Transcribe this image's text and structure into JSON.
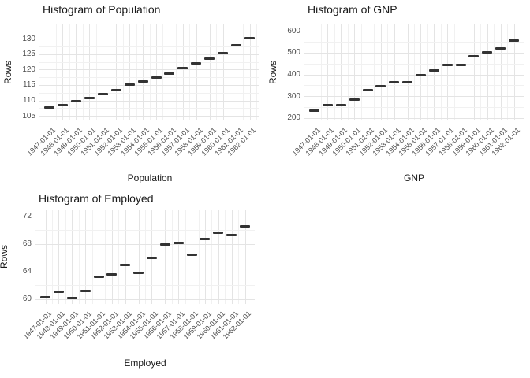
{
  "figure": {
    "background": "#ffffff",
    "layout": "2x2 grid, bottom-right cell empty"
  },
  "colors": {
    "point": "#333333",
    "grid_major": "#e4e4e4",
    "grid_minor": "#f1f1f1",
    "tick_label": "#4d4d4d",
    "text": "#1a1a1a",
    "background": "#ffffff"
  },
  "chart_data": [
    {
      "type": "scatter",
      "marker": "horizontal-dash",
      "title": "Histogram of Population",
      "xlabel": "Population",
      "ylabel": "Rows",
      "x": [
        "1947-01-01",
        "1948-01-01",
        "1949-01-01",
        "1950-01-01",
        "1951-01-01",
        "1952-01-01",
        "1953-01-01",
        "1954-01-01",
        "1955-01-01",
        "1956-01-01",
        "1957-01-01",
        "1958-01-01",
        "1959-01-01",
        "1960-01-01",
        "1961-01-01",
        "1962-01-01"
      ],
      "values": [
        107.6,
        108.6,
        109.8,
        110.9,
        112.1,
        113.3,
        115.1,
        116.2,
        117.4,
        118.7,
        120.4,
        122.0,
        123.4,
        125.4,
        127.9,
        130.1
      ],
      "y_ticks": [
        105,
        110,
        115,
        120,
        125,
        130
      ],
      "ylim": [
        103.5,
        134.6
      ],
      "grid": "major+minor",
      "legend": "none"
    },
    {
      "type": "scatter",
      "marker": "horizontal-dash",
      "title": "Histogram of GNP",
      "xlabel": "GNP",
      "ylabel": "Rows",
      "x": [
        "1947-01-01",
        "1948-01-01",
        "1949-01-01",
        "1950-01-01",
        "1951-01-01",
        "1952-01-01",
        "1953-01-01",
        "1954-01-01",
        "1955-01-01",
        "1956-01-01",
        "1957-01-01",
        "1958-01-01",
        "1959-01-01",
        "1960-01-01",
        "1961-01-01",
        "1962-01-01"
      ],
      "values": [
        234.3,
        259.4,
        258.1,
        284.6,
        329.0,
        347.0,
        365.4,
        363.1,
        397.5,
        419.2,
        442.8,
        444.5,
        482.7,
        502.6,
        518.2,
        554.9
      ],
      "y_ticks": [
        200,
        300,
        400,
        500,
        600
      ],
      "ylim": [
        189,
        629
      ],
      "grid": "major+minor",
      "legend": "none"
    },
    {
      "type": "scatter",
      "marker": "horizontal-dash",
      "title": "Histogram of Employed",
      "xlabel": "Employed",
      "ylabel": "Rows",
      "x": [
        "1947-01-01",
        "1948-01-01",
        "1949-01-01",
        "1950-01-01",
        "1951-01-01",
        "1952-01-01",
        "1953-01-01",
        "1954-01-01",
        "1955-01-01",
        "1956-01-01",
        "1957-01-01",
        "1958-01-01",
        "1959-01-01",
        "1960-01-01",
        "1961-01-01",
        "1962-01-01"
      ],
      "values": [
        60.3,
        61.1,
        60.2,
        61.2,
        63.2,
        63.6,
        65.0,
        63.8,
        66.0,
        67.9,
        68.2,
        66.5,
        68.7,
        69.6,
        69.3,
        70.6
      ],
      "y_ticks": [
        60,
        64,
        68,
        72
      ],
      "ylim": [
        59.3,
        72.9
      ],
      "grid": "major+minor",
      "legend": "none"
    }
  ]
}
